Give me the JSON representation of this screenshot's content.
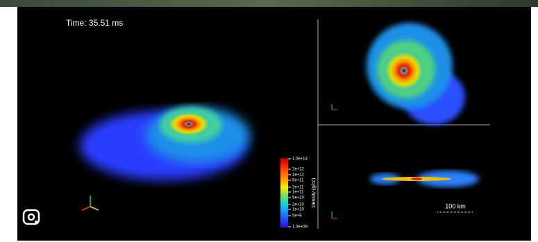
{
  "time_label": "Time: 35.51 ms",
  "colorbar": {
    "title": "Density (g/cc)",
    "tick_labels": [
      "1.0e+13",
      "2e+12",
      "1e+12",
      "5e+11",
      "2e+11",
      "1e+11",
      "5e+10",
      "2e+10",
      "1e+10",
      "5e+9",
      "1.0e+09"
    ]
  },
  "scale_bar": "100 km"
}
